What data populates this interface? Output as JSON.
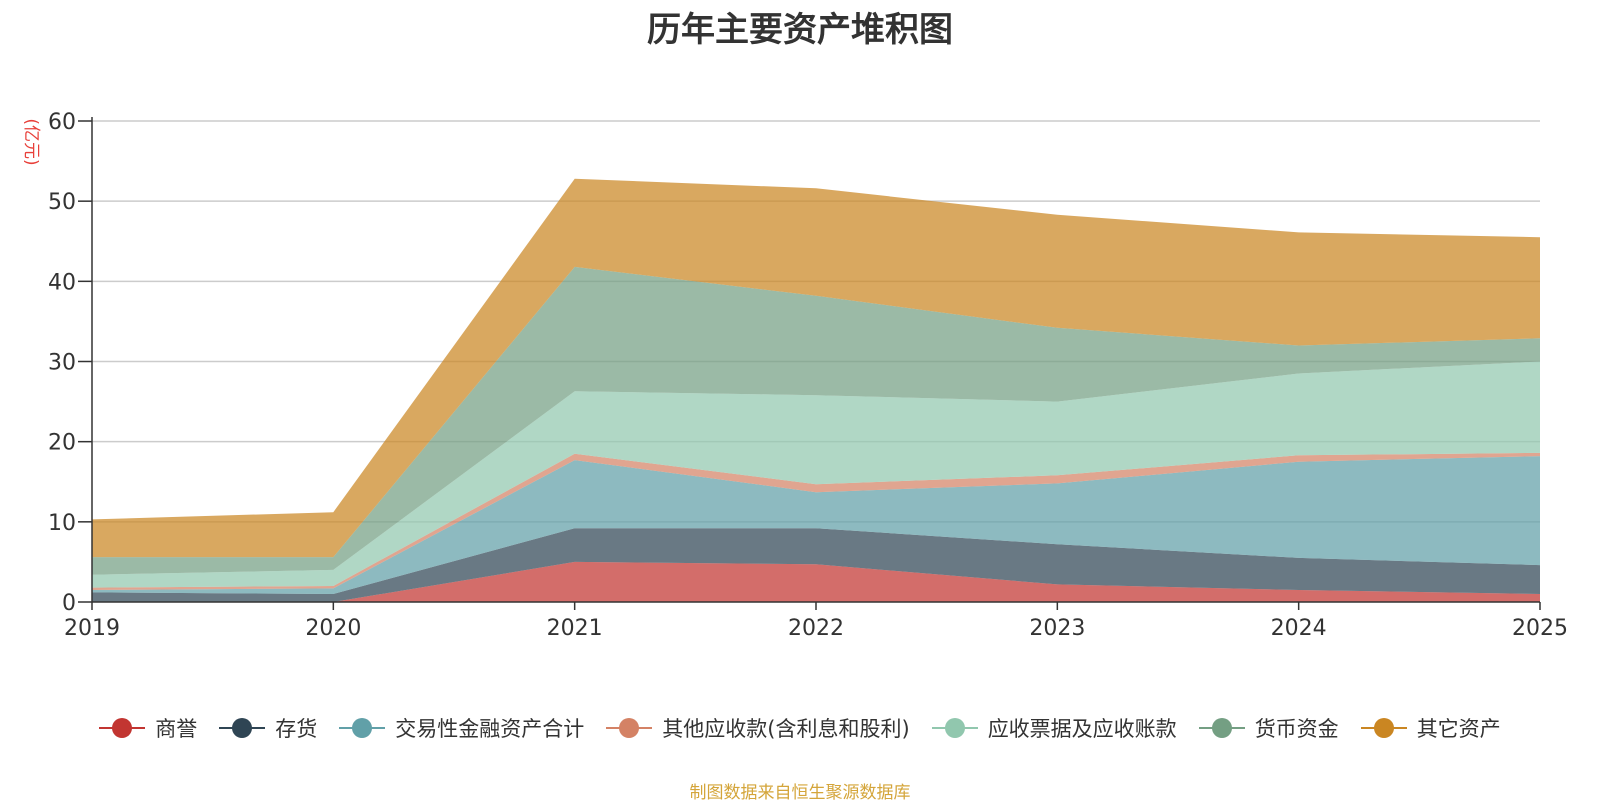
{
  "chart_data": {
    "type": "area",
    "stacked": true,
    "title": "历年主要资产堆积图",
    "ylabel": "(亿元)",
    "xlabel": "",
    "categories": [
      "2019",
      "2020",
      "2021",
      "2022",
      "2023",
      "2024",
      "2025"
    ],
    "ylim": [
      0,
      60
    ],
    "yticks": [
      0,
      10,
      20,
      30,
      40,
      50,
      60
    ],
    "grid": true,
    "legend_position": "bottom",
    "series": [
      {
        "name": "商誉",
        "color": "#c23531",
        "values": [
          0.0,
          0.0,
          5.0,
          4.7,
          2.2,
          1.5,
          1.0
        ]
      },
      {
        "name": "存货",
        "color": "#2f4554",
        "values": [
          1.2,
          1.0,
          4.2,
          4.5,
          5.0,
          4.0,
          3.6
        ]
      },
      {
        "name": "交易性金融资产合计",
        "color": "#61a0a8",
        "values": [
          0.3,
          0.7,
          8.5,
          4.5,
          7.6,
          12.0,
          13.6
        ]
      },
      {
        "name": "其他应收款(含利息和股利)",
        "color": "#d48265",
        "values": [
          0.3,
          0.3,
          0.8,
          1.0,
          1.0,
          0.8,
          0.4
        ]
      },
      {
        "name": "应收票据及应收账款",
        "color": "#91c7ae",
        "values": [
          1.6,
          2.0,
          7.8,
          11.1,
          9.2,
          10.2,
          11.4
        ]
      },
      {
        "name": "货币资金",
        "color": "#749f83",
        "values": [
          2.2,
          1.6,
          15.5,
          12.4,
          9.2,
          3.5,
          2.9
        ]
      },
      {
        "name": "其它资产",
        "color": "#ca8622",
        "values": [
          4.7,
          5.6,
          11.0,
          13.4,
          14.1,
          14.1,
          12.6
        ]
      }
    ]
  },
  "source_note": "制图数据来自恒生聚源数据库"
}
